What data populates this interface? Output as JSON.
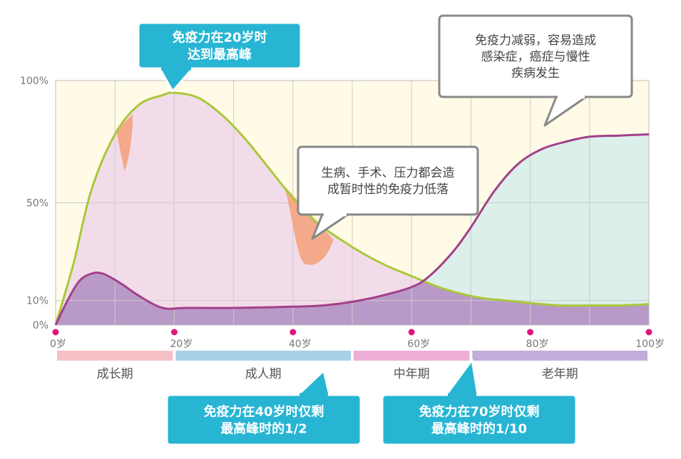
{
  "chart_data": {
    "type": "area",
    "x_unit": "岁",
    "x_ticks": [
      0,
      20,
      40,
      60,
      80,
      100
    ],
    "x_tick_labels": [
      "0岁",
      "20岁",
      "40岁",
      "60岁",
      "80岁",
      "100岁"
    ],
    "y_ticks": [
      0,
      10,
      50,
      100
    ],
    "y_tick_labels": [
      "0%",
      "10%",
      "50%",
      "100%"
    ],
    "xlim": [
      0,
      100
    ],
    "ylim": [
      0,
      100
    ],
    "grid": true,
    "series": [
      {
        "color": "#a9c83a",
        "fill": "#f3dcea",
        "points": [
          [
            0,
            0
          ],
          [
            3,
            25
          ],
          [
            6,
            55
          ],
          [
            10,
            78
          ],
          [
            14,
            90
          ],
          [
            18,
            94
          ],
          [
            20,
            95
          ],
          [
            24,
            93
          ],
          [
            28,
            86
          ],
          [
            32,
            76
          ],
          [
            36,
            64
          ],
          [
            40,
            52
          ],
          [
            44,
            42
          ],
          [
            48,
            35
          ],
          [
            52,
            29
          ],
          [
            56,
            24
          ],
          [
            60,
            20
          ],
          [
            64,
            16
          ],
          [
            68,
            13
          ],
          [
            72,
            11
          ],
          [
            76,
            10
          ],
          [
            80,
            9
          ],
          [
            85,
            8
          ],
          [
            90,
            8
          ],
          [
            95,
            8
          ],
          [
            100,
            8.5
          ]
        ]
      },
      {
        "color": "#a3408a",
        "fill_early": "#b899c8",
        "fill_late": "#dcefea",
        "points": [
          [
            0,
            0
          ],
          [
            2,
            10
          ],
          [
            4,
            18
          ],
          [
            6,
            21
          ],
          [
            8,
            21
          ],
          [
            11,
            17
          ],
          [
            14,
            12
          ],
          [
            18,
            7
          ],
          [
            22,
            7
          ],
          [
            30,
            7
          ],
          [
            40,
            7.5
          ],
          [
            45,
            8
          ],
          [
            50,
            9.5
          ],
          [
            55,
            12
          ],
          [
            60,
            15.5
          ],
          [
            63,
            20
          ],
          [
            67,
            30
          ],
          [
            70,
            40
          ],
          [
            74,
            55
          ],
          [
            78,
            66
          ],
          [
            82,
            72
          ],
          [
            86,
            75
          ],
          [
            90,
            77
          ],
          [
            95,
            77.5
          ],
          [
            100,
            78
          ]
        ]
      }
    ],
    "phases": [
      {
        "label": "成长期",
        "from": 0,
        "to": 20,
        "color": "#f5c1c6"
      },
      {
        "label": "成人期",
        "from": 20,
        "to": 50,
        "color": "#a9d1e6"
      },
      {
        "label": "中年期",
        "from": 50,
        "to": 70,
        "color": "#eeaed5"
      },
      {
        "label": "老年期",
        "from": 70,
        "to": 100,
        "color": "#c2addb"
      }
    ],
    "callouts": {
      "peak": {
        "lines": [
          "免疫力在20岁时",
          "达到最高峰"
        ]
      },
      "dip": {
        "lines": [
          "生病、手术、压力都会造",
          "成暂时性的免疫力低落"
        ]
      },
      "decline": {
        "lines": [
          "免疫力减弱，容易造成",
          "感染症，癌症与慢性",
          "疾病发生"
        ]
      },
      "at40": {
        "lines": [
          "免疫力在40岁时仅剩",
          "最高峰时的1/2"
        ]
      },
      "at70": {
        "lines": [
          "免疫力在70岁时仅剩",
          "最高峰时的1/10"
        ]
      }
    },
    "colors": {
      "plot_bg": "#fffbe6",
      "grid": "#cccccc",
      "axis_text": "#777777",
      "dot": "#e0177a",
      "dip_blob": "#f4a98a",
      "callout_teal": "#27b5d3",
      "callout_border": "#888888"
    }
  }
}
